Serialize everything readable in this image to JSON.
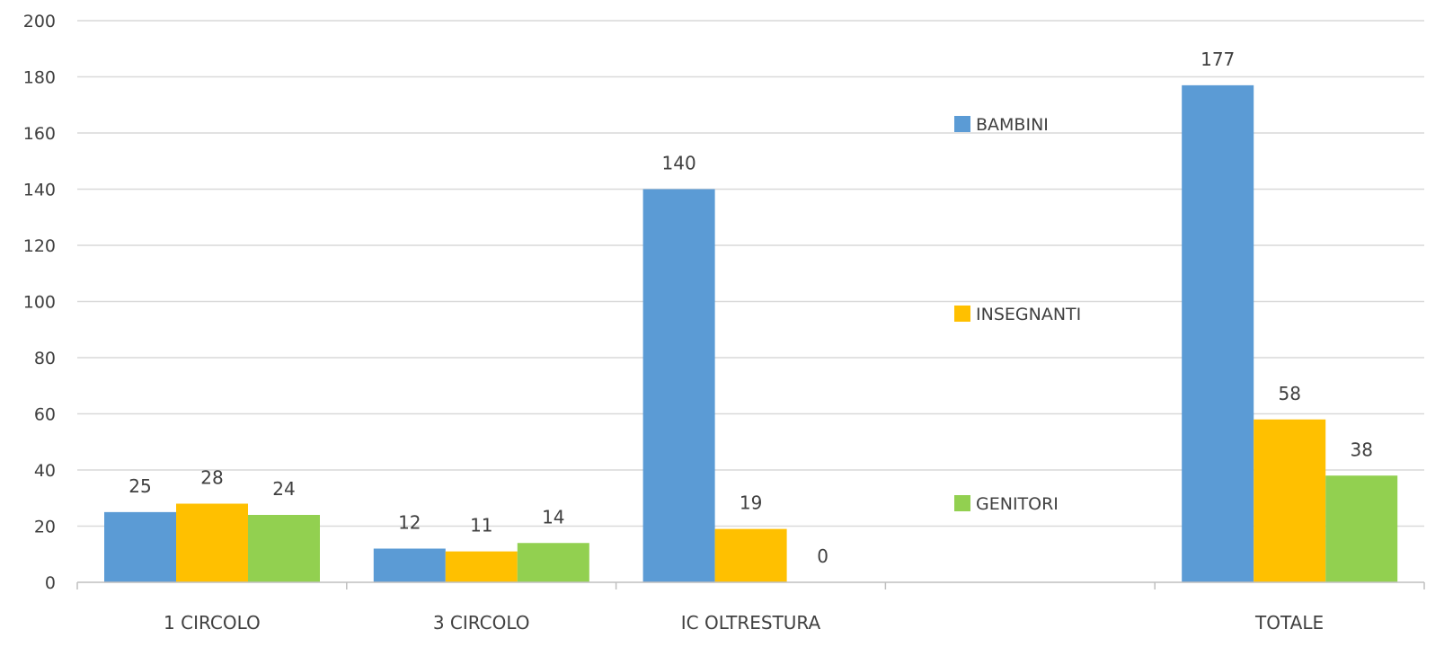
{
  "chart_data": {
    "type": "bar",
    "categories": [
      "1  CIRCOLO",
      "3  CIRCOLO",
      "IC  OLTRESTURA",
      "",
      "TOTALE"
    ],
    "series": [
      {
        "name": "BAMBINI",
        "color": "#5b9bd5",
        "values": [
          25,
          12,
          140,
          null,
          177
        ]
      },
      {
        "name": "INSEGNANTI",
        "color": "#ffc000",
        "values": [
          28,
          11,
          19,
          null,
          58
        ]
      },
      {
        "name": "GENITORI",
        "color": "#92d050",
        "values": [
          24,
          14,
          0,
          null,
          38
        ]
      }
    ],
    "ylim": [
      0,
      200
    ],
    "yticks": [
      0,
      20,
      40,
      60,
      80,
      100,
      120,
      140,
      160,
      180,
      200
    ],
    "grid": true,
    "legend_position": "inside, within empty fourth category slot",
    "data_labels": true,
    "title": "",
    "xlabel": "",
    "ylabel": ""
  }
}
